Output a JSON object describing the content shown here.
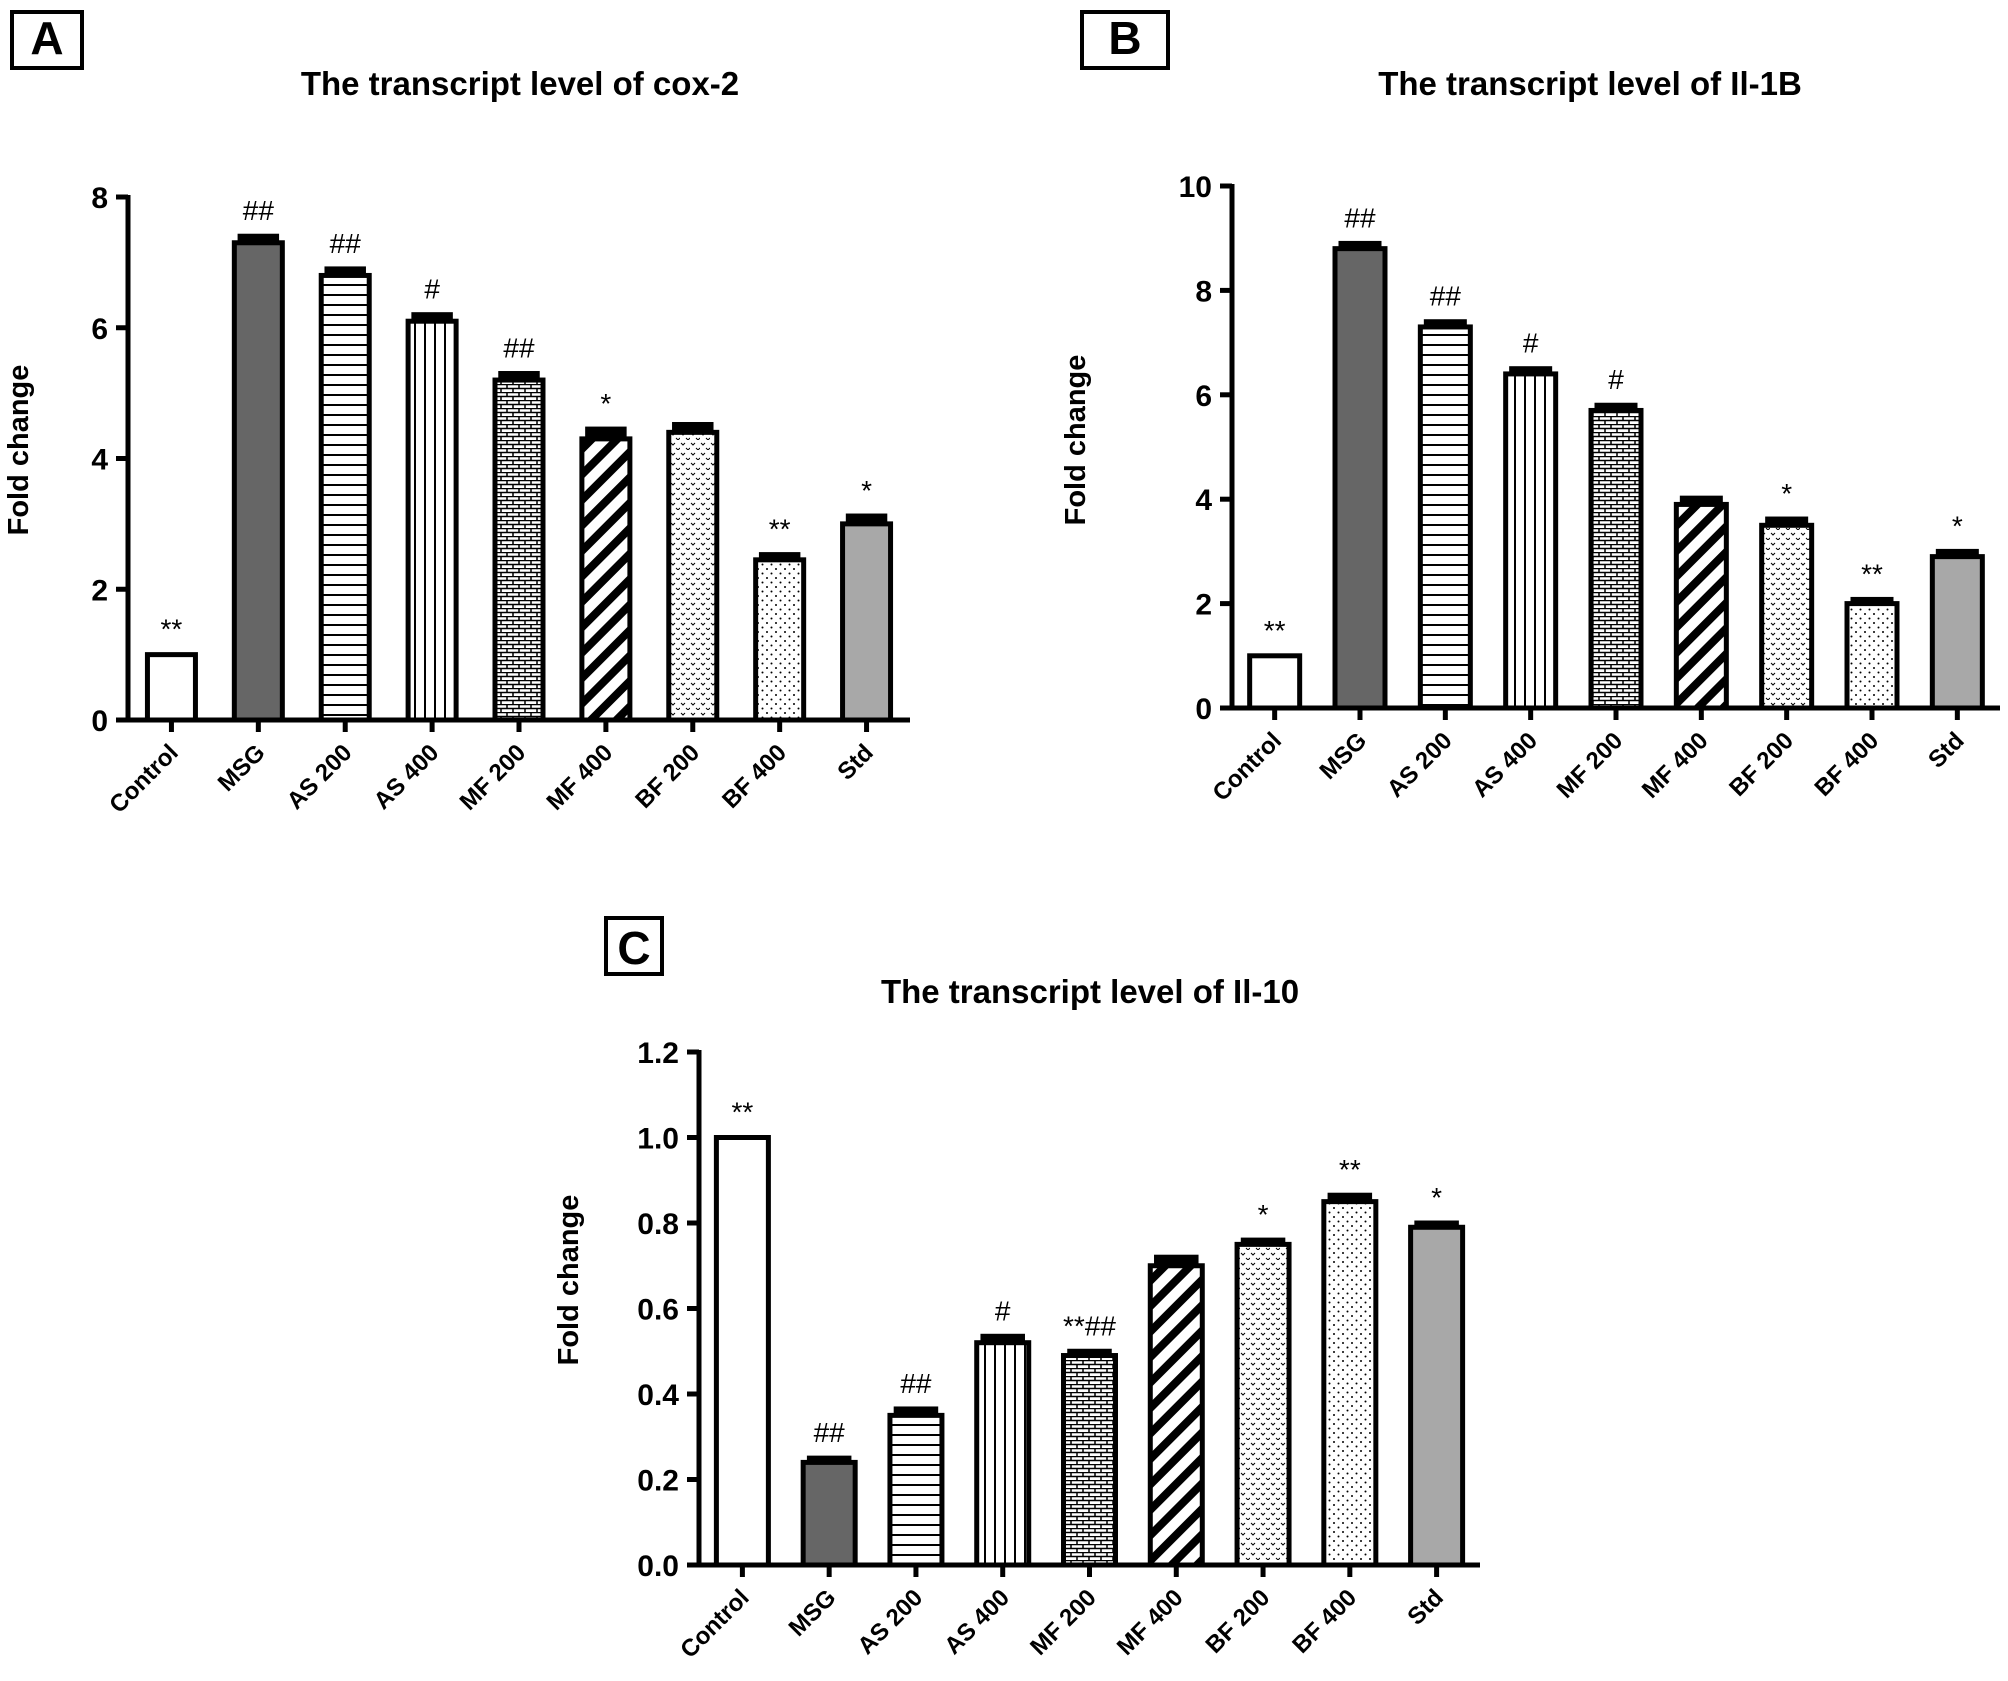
{
  "colors": {
    "control": "#ffffff",
    "msg": "#666666",
    "std": "#a8a8a8",
    "axis": "#000000"
  },
  "chart_data": [
    {
      "panel": "A",
      "type": "bar",
      "title": "The transcript level of cox-2",
      "xlabel": "",
      "ylabel": "Fold change",
      "ylim": [
        0,
        8
      ],
      "yticks": [
        "0",
        "2",
        "4",
        "6",
        "8"
      ],
      "categories": [
        "Control",
        "MSG",
        "AS 200",
        "AS 400",
        "MF 200",
        "MF 400",
        "BF 200",
        "BF 400",
        "Std"
      ],
      "values": [
        1.0,
        7.3,
        6.8,
        6.1,
        5.2,
        4.3,
        4.4,
        2.45,
        3.0
      ],
      "errors": [
        0.0,
        0.1,
        0.1,
        0.1,
        0.1,
        0.15,
        0.12,
        0.08,
        0.12
      ],
      "annotations": [
        "**",
        "##",
        "##",
        "#",
        "##",
        "*",
        "",
        "**",
        "*"
      ],
      "patterns": [
        "none",
        "solid-dark",
        "horizontal",
        "vertical",
        "brick",
        "diagonal",
        "wave",
        "dots",
        "solid-grey"
      ]
    },
    {
      "panel": "B",
      "type": "bar",
      "title": "The transcript level of Il-1B",
      "xlabel": "",
      "ylabel": "Fold change",
      "ylim": [
        0,
        10
      ],
      "yticks": [
        "0",
        "2",
        "4",
        "6",
        "8",
        "10"
      ],
      "categories": [
        "Control",
        "MSG",
        "AS 200",
        "AS 400",
        "MF 200",
        "MF 400",
        "BF 200",
        "BF 400",
        "Std"
      ],
      "values": [
        1.0,
        8.8,
        7.3,
        6.4,
        5.7,
        3.9,
        3.5,
        2.0,
        2.9
      ],
      "errors": [
        0.0,
        0.1,
        0.1,
        0.1,
        0.1,
        0.12,
        0.12,
        0.08,
        0.1
      ],
      "annotations": [
        "**",
        "##",
        "##",
        "#",
        "#",
        "",
        "*",
        "**",
        "*"
      ],
      "patterns": [
        "none",
        "solid-dark",
        "horizontal",
        "vertical",
        "brick",
        "diagonal",
        "wave",
        "dots",
        "solid-grey"
      ]
    },
    {
      "panel": "C",
      "type": "bar",
      "title": "The transcript level of Il-10",
      "xlabel": "",
      "ylabel": "Fold change",
      "ylim": [
        0,
        1.2
      ],
      "yticks": [
        "0.0",
        "0.2",
        "0.4",
        "0.6",
        "0.8",
        "1.0",
        "1.2"
      ],
      "categories": [
        "Control",
        "MSG",
        "AS 200",
        "AS 400",
        "MF 200",
        "MF 400",
        "BF 200",
        "BF 400",
        "Std"
      ],
      "values": [
        1.0,
        0.24,
        0.35,
        0.52,
        0.49,
        0.7,
        0.75,
        0.85,
        0.79
      ],
      "errors": [
        0.0,
        0.01,
        0.015,
        0.015,
        0.01,
        0.02,
        0.01,
        0.015,
        0.01
      ],
      "annotations": [
        "**",
        "##",
        "##",
        "#",
        "**##",
        "",
        "*",
        "**",
        "*"
      ],
      "patterns": [
        "none",
        "solid-dark",
        "horizontal",
        "vertical",
        "brick",
        "diagonal",
        "wave",
        "dots",
        "solid-grey"
      ]
    }
  ]
}
